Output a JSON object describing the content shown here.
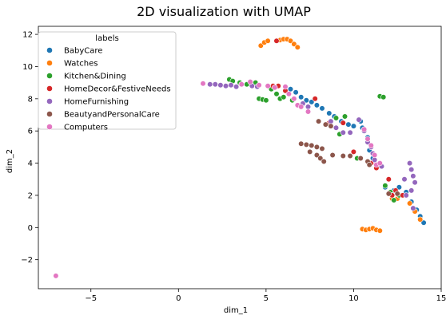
{
  "chart_data": {
    "type": "scatter",
    "title": "2D visualization with UMAP",
    "xlabel": "dim_1",
    "ylabel": "dim_2",
    "xlim": [
      -8,
      15
    ],
    "ylim": [
      -3.8,
      12.5
    ],
    "xticks": [
      -5,
      0,
      5,
      10,
      15
    ],
    "yticks": [
      -2,
      0,
      2,
      4,
      6,
      8,
      10,
      12
    ],
    "xtick_labels": [
      "−5",
      "0",
      "5",
      "10",
      "15"
    ],
    "ytick_labels": [
      "−2",
      "0",
      "2",
      "4",
      "6",
      "8",
      "10",
      "12"
    ],
    "legend": {
      "title": "labels",
      "placement": "top-left"
    },
    "grid": false,
    "series": [
      {
        "name": "BabyCare",
        "color": "#1f77b4",
        "points": [
          [
            6.4,
            8.6
          ],
          [
            6.7,
            8.4
          ],
          [
            7.0,
            8.1
          ],
          [
            7.3,
            7.9
          ],
          [
            7.6,
            7.8
          ],
          [
            7.9,
            7.6
          ],
          [
            8.2,
            7.4
          ],
          [
            8.6,
            7.1
          ],
          [
            8.9,
            6.9
          ],
          [
            9.3,
            6.6
          ],
          [
            9.7,
            6.4
          ],
          [
            10.0,
            6.3
          ],
          [
            10.4,
            6.6
          ],
          [
            10.5,
            6.2
          ],
          [
            10.8,
            5.6
          ],
          [
            10.9,
            4.8
          ],
          [
            11.1,
            4.3
          ],
          [
            11.4,
            3.8
          ],
          [
            11.8,
            2.5
          ],
          [
            12.3,
            2.3
          ],
          [
            12.6,
            2.5
          ],
          [
            13.0,
            2.2
          ],
          [
            13.3,
            1.6
          ],
          [
            13.6,
            1.1
          ],
          [
            13.8,
            0.7
          ],
          [
            14.0,
            0.3
          ]
        ]
      },
      {
        "name": "Watches",
        "color": "#ff7f0e",
        "points": [
          [
            4.7,
            11.3
          ],
          [
            4.9,
            11.5
          ],
          [
            5.1,
            11.6
          ],
          [
            5.6,
            11.6
          ],
          [
            5.8,
            11.65
          ],
          [
            6.0,
            11.7
          ],
          [
            6.2,
            11.7
          ],
          [
            6.4,
            11.6
          ],
          [
            6.6,
            11.4
          ],
          [
            6.8,
            11.2
          ],
          [
            10.5,
            -0.1
          ],
          [
            10.7,
            -0.15
          ],
          [
            10.9,
            -0.1
          ],
          [
            11.1,
            -0.05
          ],
          [
            11.3,
            -0.15
          ],
          [
            11.5,
            -0.2
          ],
          [
            12.2,
            1.8
          ],
          [
            12.5,
            1.8
          ],
          [
            13.2,
            1.5
          ],
          [
            13.5,
            1.0
          ],
          [
            13.8,
            0.5
          ]
        ]
      },
      {
        "name": "Kitchen&Dining",
        "color": "#2ca02c",
        "points": [
          [
            2.9,
            9.2
          ],
          [
            3.1,
            9.1
          ],
          [
            3.5,
            9.0
          ],
          [
            3.9,
            8.9
          ],
          [
            4.4,
            9.0
          ],
          [
            5.3,
            8.6
          ],
          [
            5.6,
            8.3
          ],
          [
            5.8,
            8.0
          ],
          [
            6.0,
            8.1
          ],
          [
            4.6,
            8.0
          ],
          [
            4.8,
            7.95
          ],
          [
            5.0,
            7.9
          ],
          [
            6.5,
            7.9
          ],
          [
            9.0,
            6.8
          ],
          [
            9.5,
            6.9
          ],
          [
            9.2,
            5.8
          ],
          [
            10.2,
            4.3
          ],
          [
            11.5,
            8.15
          ],
          [
            11.7,
            8.1
          ],
          [
            11.8,
            2.6
          ],
          [
            12.1,
            2.2
          ],
          [
            12.3,
            1.7
          ],
          [
            12.6,
            2.0
          ]
        ]
      },
      {
        "name": "HomeDecor&FestiveNeeds",
        "color": "#d62728",
        "points": [
          [
            5.6,
            11.6
          ],
          [
            5.4,
            8.8
          ],
          [
            5.7,
            8.8
          ],
          [
            6.1,
            8.5
          ],
          [
            7.8,
            8.0
          ],
          [
            8.6,
            6.5
          ],
          [
            9.4,
            6.5
          ],
          [
            10.0,
            4.7
          ],
          [
            11.0,
            4.0
          ],
          [
            11.3,
            3.7
          ],
          [
            12.0,
            3.0
          ],
          [
            12.2,
            2.0
          ],
          [
            12.4,
            2.3
          ],
          [
            12.8,
            2.0
          ]
        ]
      },
      {
        "name": "HomeFurnishing",
        "color": "#9467bd",
        "points": [
          [
            1.8,
            8.9
          ],
          [
            2.1,
            8.9
          ],
          [
            2.4,
            8.85
          ],
          [
            2.7,
            8.8
          ],
          [
            3.0,
            8.85
          ],
          [
            3.3,
            8.75
          ],
          [
            4.2,
            8.8
          ],
          [
            4.5,
            8.75
          ],
          [
            7.1,
            7.7
          ],
          [
            7.4,
            7.5
          ],
          [
            8.7,
            6.6
          ],
          [
            9.0,
            6.2
          ],
          [
            9.4,
            5.9
          ],
          [
            9.8,
            5.9
          ],
          [
            10.3,
            6.7
          ],
          [
            10.6,
            6.0
          ],
          [
            10.8,
            5.3
          ],
          [
            11.0,
            5.0
          ],
          [
            11.1,
            4.6
          ],
          [
            11.2,
            4.2
          ],
          [
            11.6,
            3.8
          ],
          [
            12.9,
            3.0
          ],
          [
            13.2,
            4.0
          ],
          [
            13.3,
            3.6
          ],
          [
            13.4,
            3.2
          ],
          [
            13.5,
            2.8
          ],
          [
            13.3,
            2.3
          ],
          [
            13.0,
            2.0
          ],
          [
            13.4,
            1.2
          ]
        ]
      },
      {
        "name": "BeautyandPersonalCare",
        "color": "#8c564b",
        "points": [
          [
            7.0,
            5.2
          ],
          [
            7.3,
            5.15
          ],
          [
            7.6,
            5.1
          ],
          [
            7.9,
            5.0
          ],
          [
            8.2,
            4.9
          ],
          [
            7.5,
            4.7
          ],
          [
            7.9,
            4.5
          ],
          [
            8.1,
            4.3
          ],
          [
            8.3,
            4.1
          ],
          [
            8.0,
            6.6
          ],
          [
            8.4,
            6.4
          ],
          [
            8.7,
            6.3
          ],
          [
            8.8,
            4.5
          ],
          [
            9.4,
            4.45
          ],
          [
            9.8,
            4.45
          ],
          [
            10.4,
            4.3
          ],
          [
            10.8,
            4.1
          ],
          [
            10.9,
            3.9
          ],
          [
            12.0,
            2.1
          ],
          [
            12.5,
            2.1
          ]
        ]
      },
      {
        "name": "Computers",
        "color": "#e377c2",
        "points": [
          [
            -7.0,
            -3.0
          ],
          [
            1.4,
            8.95
          ],
          [
            3.6,
            8.9
          ],
          [
            4.1,
            9.05
          ],
          [
            4.6,
            8.85
          ],
          [
            5.1,
            8.8
          ],
          [
            5.5,
            8.7
          ],
          [
            6.1,
            8.75
          ],
          [
            6.3,
            8.3
          ],
          [
            6.6,
            8.0
          ],
          [
            6.8,
            7.6
          ],
          [
            7.0,
            7.5
          ],
          [
            7.4,
            7.2
          ],
          [
            10.6,
            6.1
          ],
          [
            10.8,
            5.5
          ],
          [
            11.0,
            5.1
          ],
          [
            11.2,
            4.5
          ],
          [
            11.3,
            3.9
          ],
          [
            11.5,
            4.0
          ]
        ]
      }
    ]
  }
}
